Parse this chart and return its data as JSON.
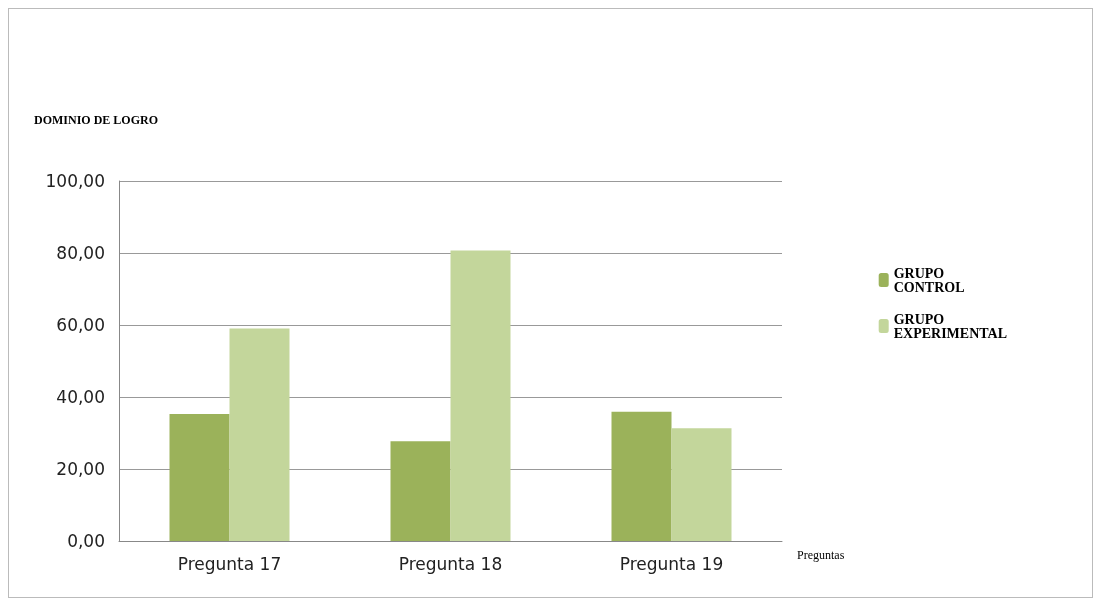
{
  "chart_data": {
    "type": "bar",
    "ylabel": "DOMINIO DE LOGRO",
    "xlabel": "Preguntas",
    "categories": [
      "Pregunta 17",
      "Pregunta 18",
      "Pregunta 19"
    ],
    "series": [
      {
        "name": "GRUPO CONTROL",
        "color": "#9bb25a",
        "values": [
          35.3,
          27.7,
          35.9
        ]
      },
      {
        "name": "GRUPO EXPERIMENTAL",
        "color": "#c3d69b",
        "values": [
          59.0,
          80.7,
          31.3
        ]
      }
    ],
    "ylim": [
      0,
      100
    ],
    "yticks": [
      {
        "value": 0,
        "label": "0,00"
      },
      {
        "value": 20,
        "label": "20,00"
      },
      {
        "value": 40,
        "label": "40,00"
      },
      {
        "value": 60,
        "label": "60,00"
      },
      {
        "value": 80,
        "label": "80,00"
      },
      {
        "value": 100,
        "label": "100,00"
      }
    ],
    "grid": "y",
    "legend": "right"
  }
}
